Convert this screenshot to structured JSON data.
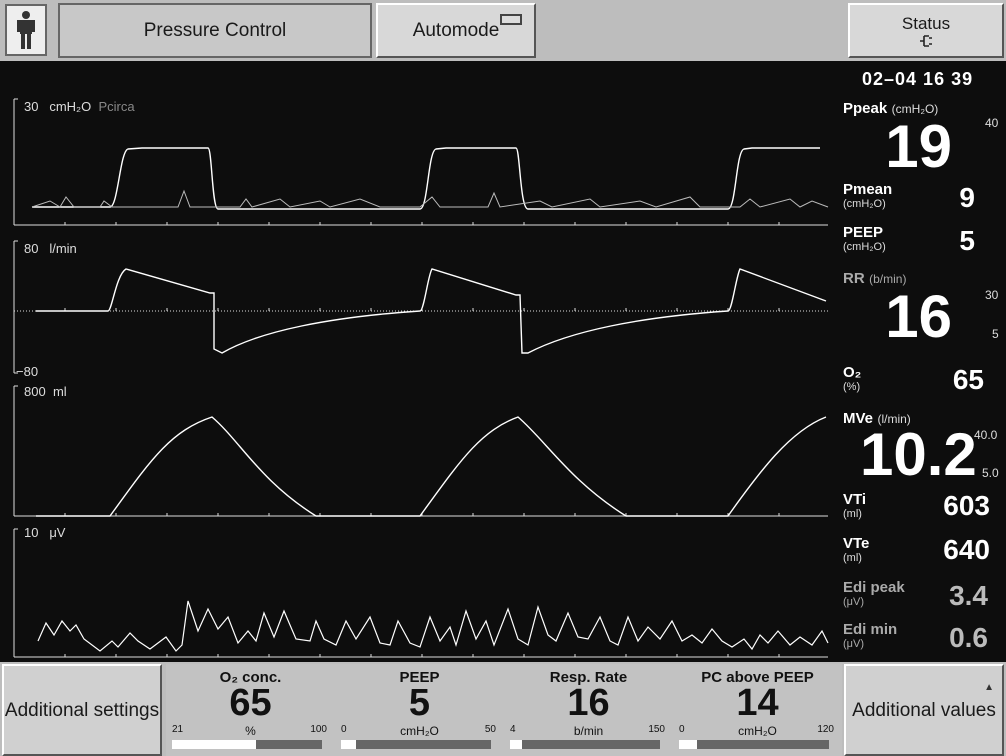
{
  "top": {
    "mode_label": "Pressure Control",
    "automode_label": "Automode",
    "status_label": "Status",
    "status_icon": "plug-icon"
  },
  "datetime": "02–04   16 39",
  "waveforms": {
    "pressure": {
      "scale_top": "30",
      "unit": "cmH₂O",
      "source": "Pcirca"
    },
    "flow": {
      "scale_top": "80",
      "unit": "l/min",
      "scale_bottom": "−80"
    },
    "volume": {
      "scale_top": "800",
      "unit": "ml"
    },
    "edi": {
      "scale_top": "10",
      "unit": "μV"
    }
  },
  "measured": {
    "ppeak": {
      "name": "Ppeak",
      "unit": "(cmH₂O)",
      "value": "19",
      "limit_high": "40"
    },
    "pmean": {
      "name": "Pmean",
      "unit": "(cmH₂O)",
      "value": "9"
    },
    "peep": {
      "name": "PEEP",
      "unit": "(cmH₂O)",
      "value": "5"
    },
    "rr": {
      "name": "RR",
      "unit": "(b/min)",
      "value": "16",
      "limit_high": "30",
      "limit_low": "5"
    },
    "o2": {
      "name": "O₂",
      "unit": "(%)",
      "value": "65"
    },
    "mve": {
      "name": "MVe",
      "unit": "(l/min)",
      "value": "10.2",
      "limit_high": "40.0",
      "limit_low": "5.0"
    },
    "vti": {
      "name": "VTi",
      "unit": "(ml)",
      "value": "603"
    },
    "vte": {
      "name": "VTe",
      "unit": "(ml)",
      "value": "640"
    },
    "edi_peak": {
      "name": "Edi peak",
      "unit": "(μV)",
      "value": "3.4"
    },
    "edi_min": {
      "name": "Edi min",
      "unit": "(μV)",
      "value": "0.6"
    }
  },
  "bottom": {
    "additional_settings": "Additional settings",
    "additional_values": "Additional values",
    "settings": [
      {
        "name": "O₂ conc.",
        "value": "65",
        "min": "21",
        "max": "100",
        "unit": "%",
        "level": 0.56
      },
      {
        "name": "PEEP",
        "value": "5",
        "min": "0",
        "max": "50",
        "unit": "cmH₂O",
        "level": 0.1
      },
      {
        "name": "Resp. Rate",
        "value": "16",
        "min": "4",
        "max": "150",
        "unit": "b/min",
        "level": 0.08
      },
      {
        "name": "PC above PEEP",
        "value": "14",
        "min": "0",
        "max": "120",
        "unit": "cmH₂O",
        "level": 0.12
      }
    ]
  }
}
